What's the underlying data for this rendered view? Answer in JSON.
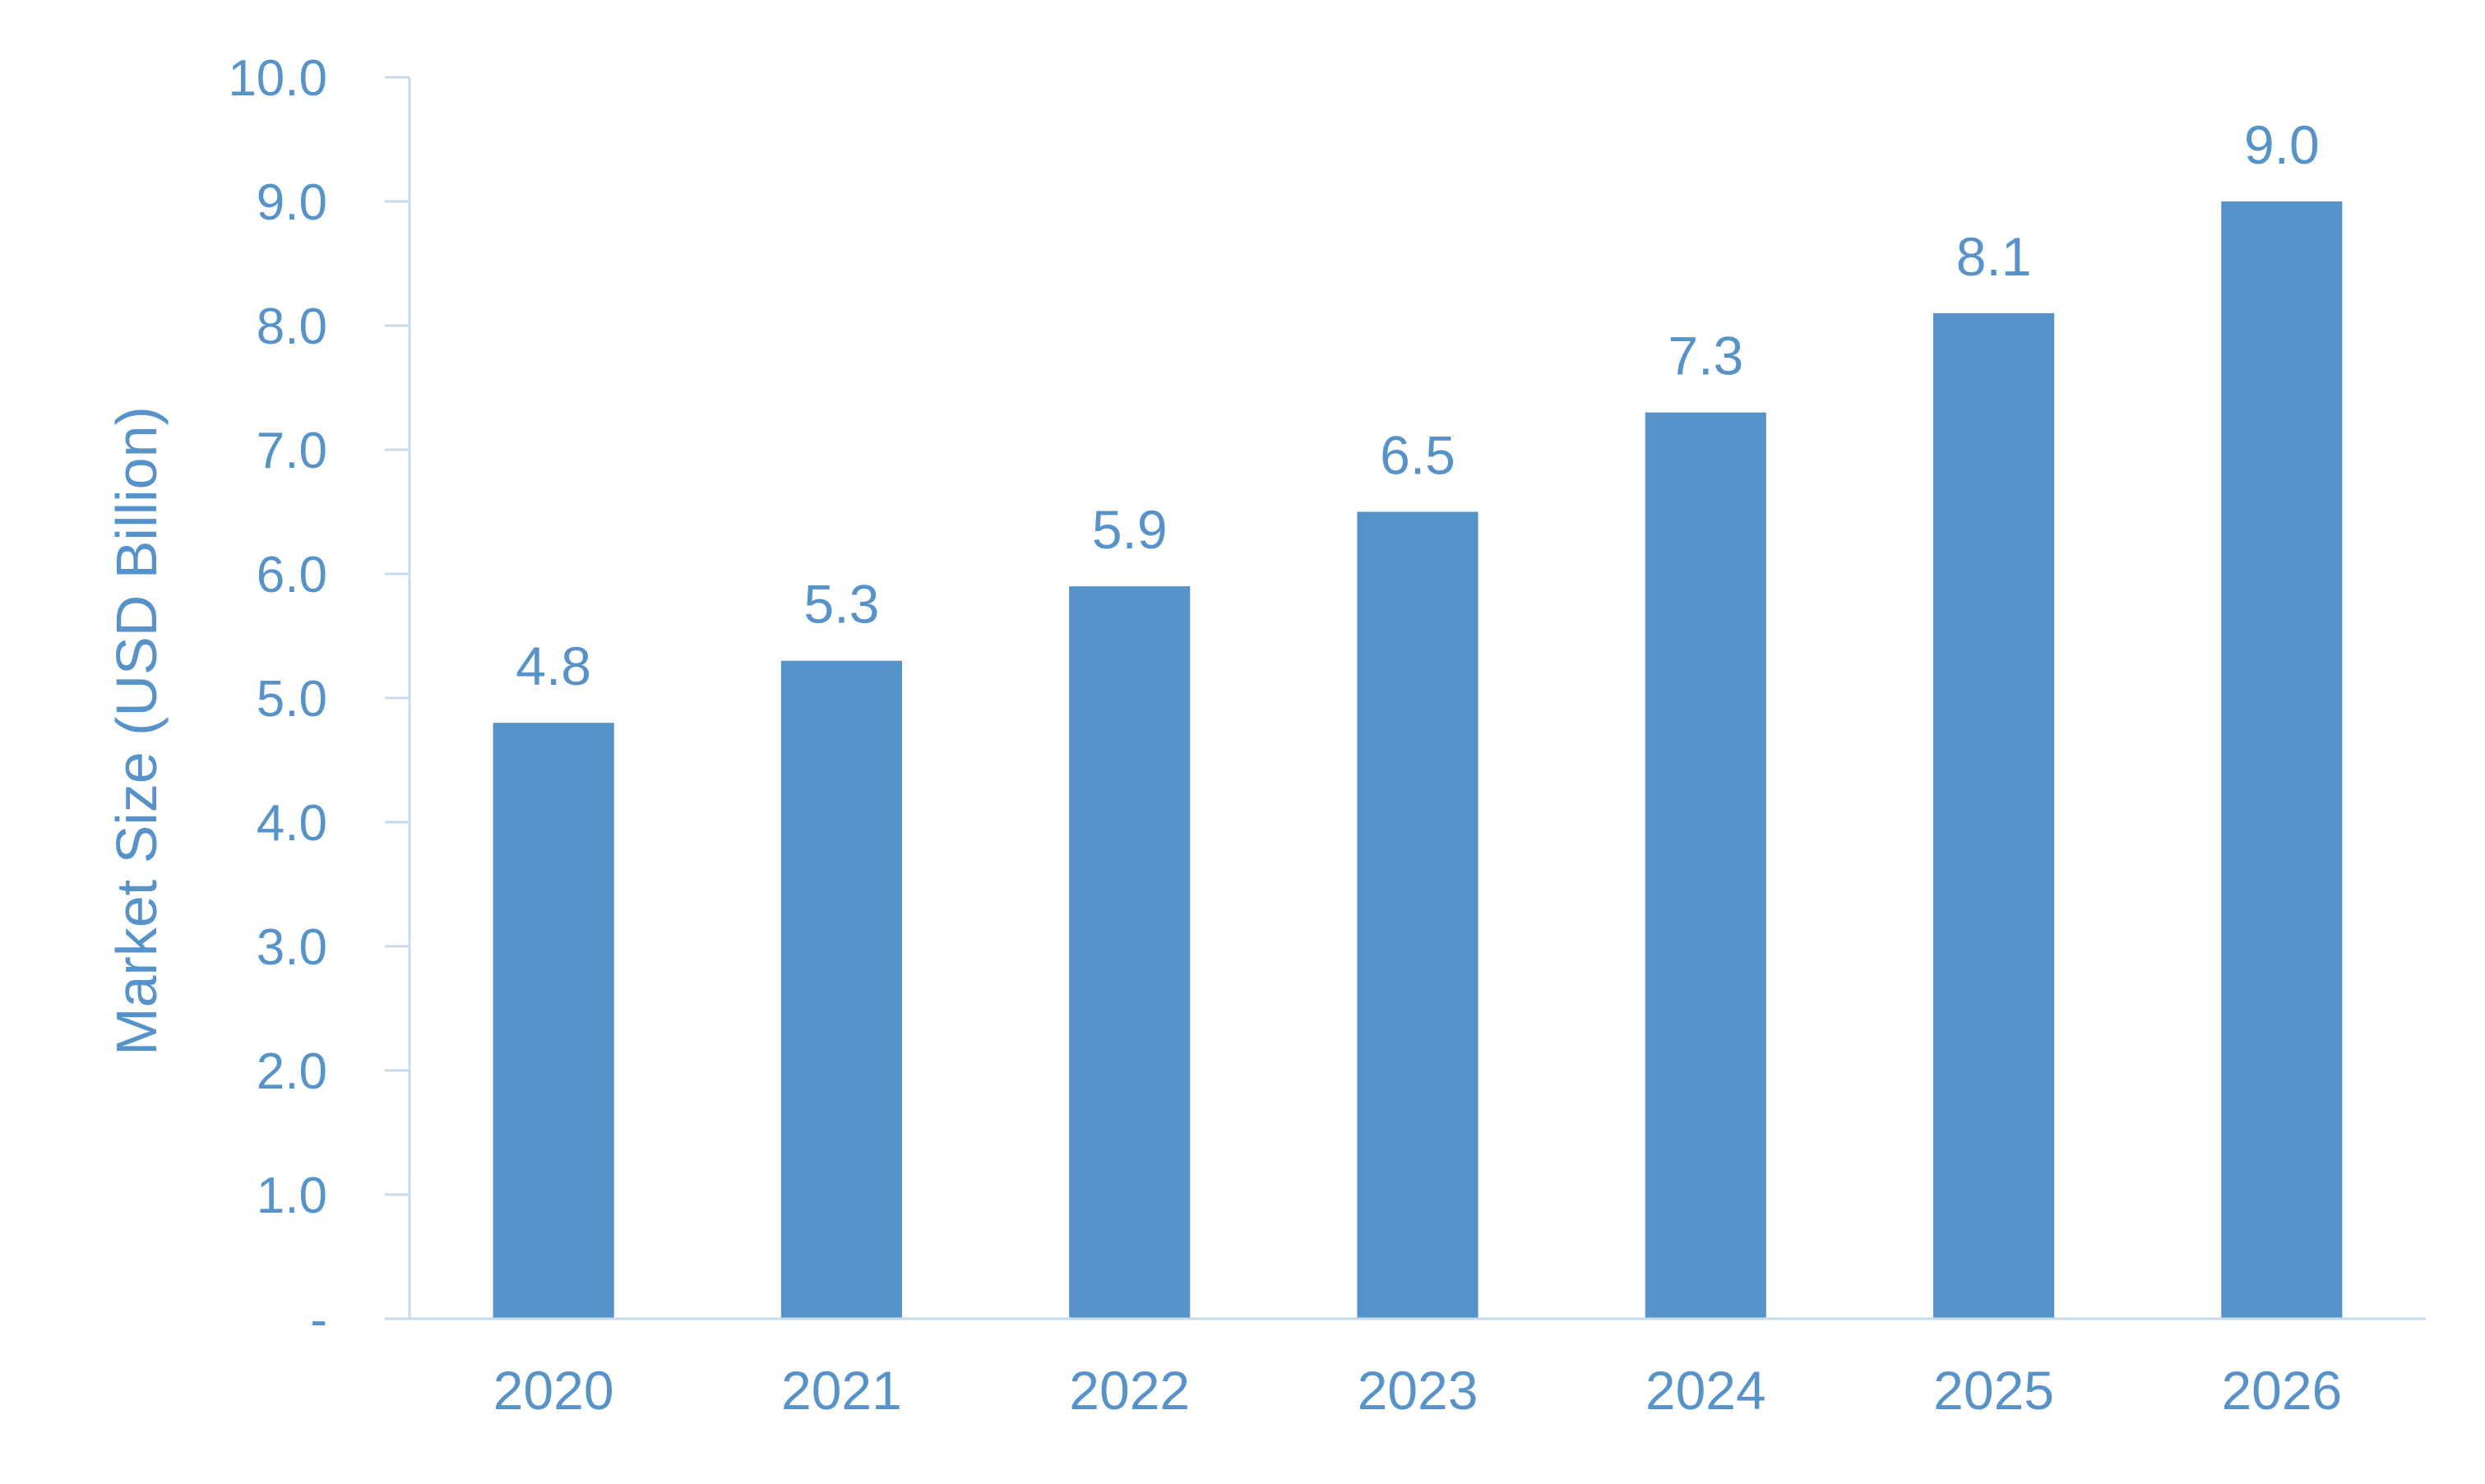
{
  "chart_data": {
    "type": "bar",
    "title": "",
    "xlabel": "",
    "ylabel": "Market Size (USD Billion)",
    "categories": [
      "2020",
      "2021",
      "2022",
      "2023",
      "2024",
      "2025",
      "2026"
    ],
    "values": [
      4.8,
      5.3,
      5.9,
      6.5,
      7.3,
      8.1,
      9.0
    ],
    "data_labels": [
      "4.8",
      "5.3",
      "5.9",
      "6.5",
      "7.3",
      "8.1",
      "9.0"
    ],
    "ylim": [
      0,
      10
    ],
    "yticks": [
      0,
      1,
      2,
      3,
      4,
      5,
      6,
      7,
      8,
      9,
      10
    ],
    "ytick_labels": [
      "-",
      "1.0",
      "2.0",
      "3.0",
      "4.0",
      "5.0",
      "6.0",
      "7.0",
      "8.0",
      "9.0",
      "10.0"
    ],
    "grid": false,
    "legend": "none",
    "colors": {
      "bar": "#5793C9",
      "text": "#5793C9",
      "axis": "#C9DAEC"
    }
  }
}
